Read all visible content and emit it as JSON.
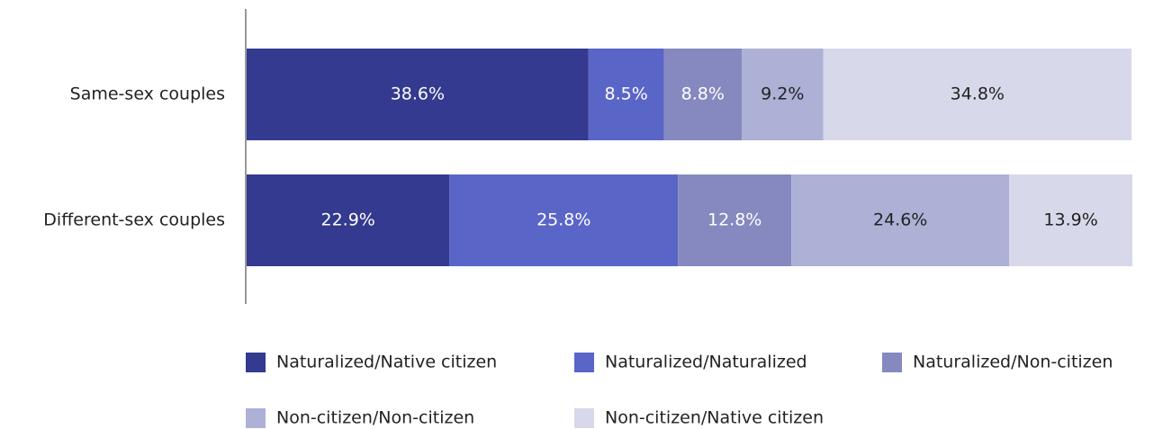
{
  "chart_data": {
    "type": "stacked-barh",
    "categories": [
      "Same-sex couples",
      "Different-sex couples"
    ],
    "xlim": [
      0,
      100
    ],
    "series": [
      {
        "name": "Naturalized/Native citizen",
        "color": "#343a8f",
        "values": [
          38.6,
          22.9
        ],
        "value_labels": [
          "38.6%",
          "22.9%"
        ]
      },
      {
        "name": "Naturalized/Naturalized",
        "color": "#5a65c8",
        "values": [
          8.5,
          25.8
        ],
        "value_labels": [
          "8.5%",
          "25.8%"
        ]
      },
      {
        "name": "Naturalized/Non-citizen",
        "color": "#8589bf",
        "values": [
          8.8,
          12.8
        ],
        "value_labels": [
          "8.8%",
          "12.8%"
        ]
      },
      {
        "name": "Non-citizen/Non-citizen",
        "color": "#adb1d6",
        "values": [
          9.2,
          24.6
        ],
        "value_labels": [
          "9.2%",
          "24.6%"
        ]
      },
      {
        "name": "Non-citizen/Native citizen",
        "color": "#d7d8ea",
        "values": [
          34.8,
          13.9
        ],
        "value_labels": [
          "34.8%",
          "13.9%"
        ]
      }
    ]
  }
}
